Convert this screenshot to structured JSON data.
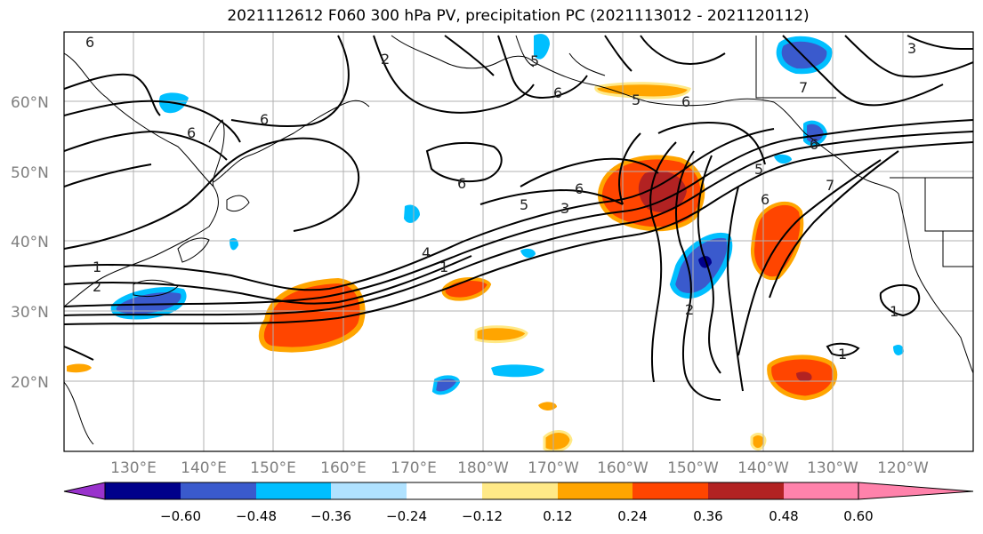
{
  "title": "2021112612 F060 300 hPa PV, precipitation PC (2021113012 - 2021120112)",
  "lat_labels": [
    "60°N",
    "50°N",
    "40°N",
    "30°N",
    "20°N"
  ],
  "lon_labels": [
    "130°E",
    "140°E",
    "150°E",
    "160°E",
    "170°E",
    "180°W",
    "170°W",
    "160°W",
    "150°W",
    "140°W",
    "130°W",
    "120°W"
  ],
  "colorbar": {
    "colors": [
      "#9932cc",
      "#00008b",
      "#3a5acd",
      "#00bfff",
      "#b0e2ff",
      "#ffffff",
      "#ffe987",
      "#ffa500",
      "#ff4500",
      "#b22222",
      "#ff82ab"
    ],
    "labels": [
      "−0.60",
      "−0.48",
      "−0.36",
      "−0.24",
      "−0.12",
      "0.12",
      "0.24",
      "0.36",
      "0.48",
      "0.60"
    ]
  },
  "contour_labels": [
    "6",
    "2",
    "6",
    "6",
    "5",
    "6",
    "7",
    "3",
    "6",
    "5",
    "6",
    "6",
    "5",
    "3",
    "6",
    "5",
    "6",
    "7",
    "4",
    "1",
    "1",
    "2",
    "1",
    "1",
    "2"
  ]
}
